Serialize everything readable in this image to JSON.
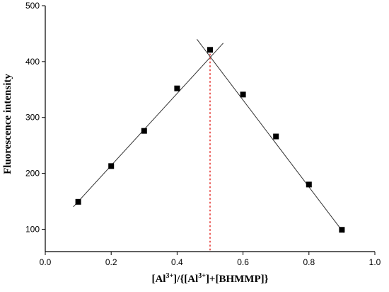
{
  "chart_data": {
    "type": "scatter",
    "xlabel_parts": [
      {
        "text": "[Al",
        "sup": false
      },
      {
        "text": "3+",
        "sup": true
      },
      {
        "text": "]/{[Al",
        "sup": false
      },
      {
        "text": "3+",
        "sup": true
      },
      {
        "text": "]+[BHMMP]}",
        "sup": false
      }
    ],
    "ylabel": "Fluorescence intensity",
    "xlim": [
      0.0,
      1.0
    ],
    "ylim": [
      60,
      500
    ],
    "x_ticks": [
      0.0,
      0.2,
      0.4,
      0.6,
      0.8,
      1.0
    ],
    "x_tick_labels": [
      "0.0",
      "0.2",
      "0.4",
      "0.6",
      "0.8",
      "1.0"
    ],
    "y_ticks": [
      100,
      200,
      300,
      400,
      500
    ],
    "y_tick_labels": [
      "100",
      "200",
      "300",
      "400",
      "500"
    ],
    "grid": false,
    "points": [
      {
        "x": 0.1,
        "y": 149
      },
      {
        "x": 0.2,
        "y": 213
      },
      {
        "x": 0.3,
        "y": 276
      },
      {
        "x": 0.4,
        "y": 352
      },
      {
        "x": 0.5,
        "y": 421
      },
      {
        "x": 0.6,
        "y": 341
      },
      {
        "x": 0.7,
        "y": 266
      },
      {
        "x": 0.8,
        "y": 180
      },
      {
        "x": 0.9,
        "y": 99
      }
    ],
    "fit_lines": [
      {
        "from": [
          0.085,
          140
        ],
        "to": [
          0.54,
          433
        ]
      },
      {
        "from": [
          0.46,
          440
        ],
        "to": [
          0.905,
          94
        ]
      }
    ],
    "reference_line": {
      "x": 0.5,
      "from_y": 60,
      "to_y": 421,
      "color": "#e53935"
    }
  }
}
